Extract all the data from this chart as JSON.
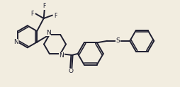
{
  "bg_color": "#f2ede0",
  "line_color": "#1e1e30",
  "lw": 1.4,
  "fs": 6.0,
  "xlim": [
    0,
    10.2
  ],
  "ylim": [
    0,
    4.92
  ]
}
